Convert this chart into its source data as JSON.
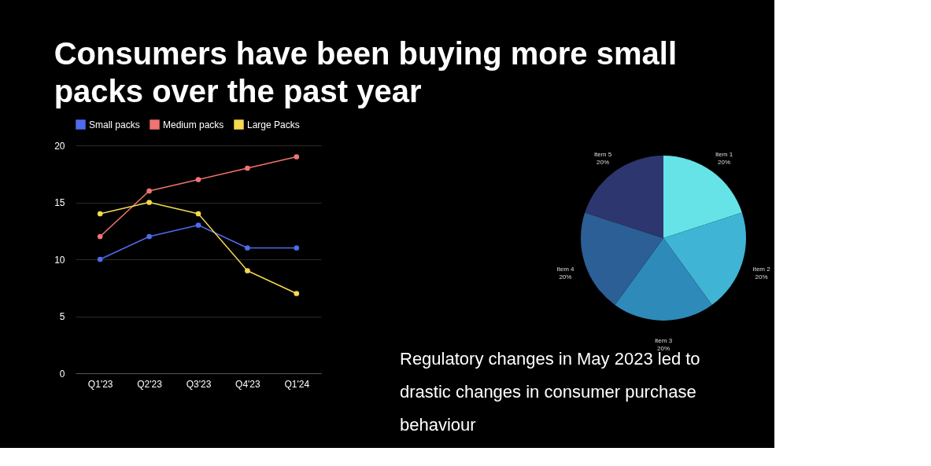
{
  "chart_data": [
    {
      "type": "line",
      "title": "Consumers have been buying more small packs over the past year",
      "categories": [
        "Q1'23",
        "Q2'23",
        "Q3'23",
        "Q4'23",
        "Q1'24"
      ],
      "series": [
        {
          "name": "Small packs",
          "color": "#4f6bed",
          "values": [
            10,
            12,
            13,
            11,
            11
          ]
        },
        {
          "name": "Medium packs",
          "color": "#f07470",
          "values": [
            12,
            16,
            17,
            18,
            19
          ]
        },
        {
          "name": "Large Packs",
          "color": "#f5d94e",
          "values": [
            14,
            15,
            14,
            9,
            7
          ]
        }
      ],
      "ylim": [
        0,
        20
      ],
      "yticks": [
        0,
        5,
        10,
        15,
        20
      ],
      "grid": "y",
      "legend": "top",
      "marker": "circle",
      "line_style": "solid"
    },
    {
      "type": "pie",
      "categories": [
        "Item 1",
        "Item 2",
        "Item 3",
        "Item 4",
        "Item 5"
      ],
      "values": [
        20,
        20,
        20,
        20,
        20
      ],
      "colors": [
        "#66e3e6",
        "#40b4d4",
        "#2e8ab8",
        "#2b5f96",
        "#2e3670"
      ],
      "value_labels": [
        "20%",
        "20%",
        "20%",
        "20%",
        "20%"
      ],
      "annotations": [
        "Regulatory changes in May 2023 led to drastic changes in consumer purchase behaviour"
      ]
    }
  ]
}
